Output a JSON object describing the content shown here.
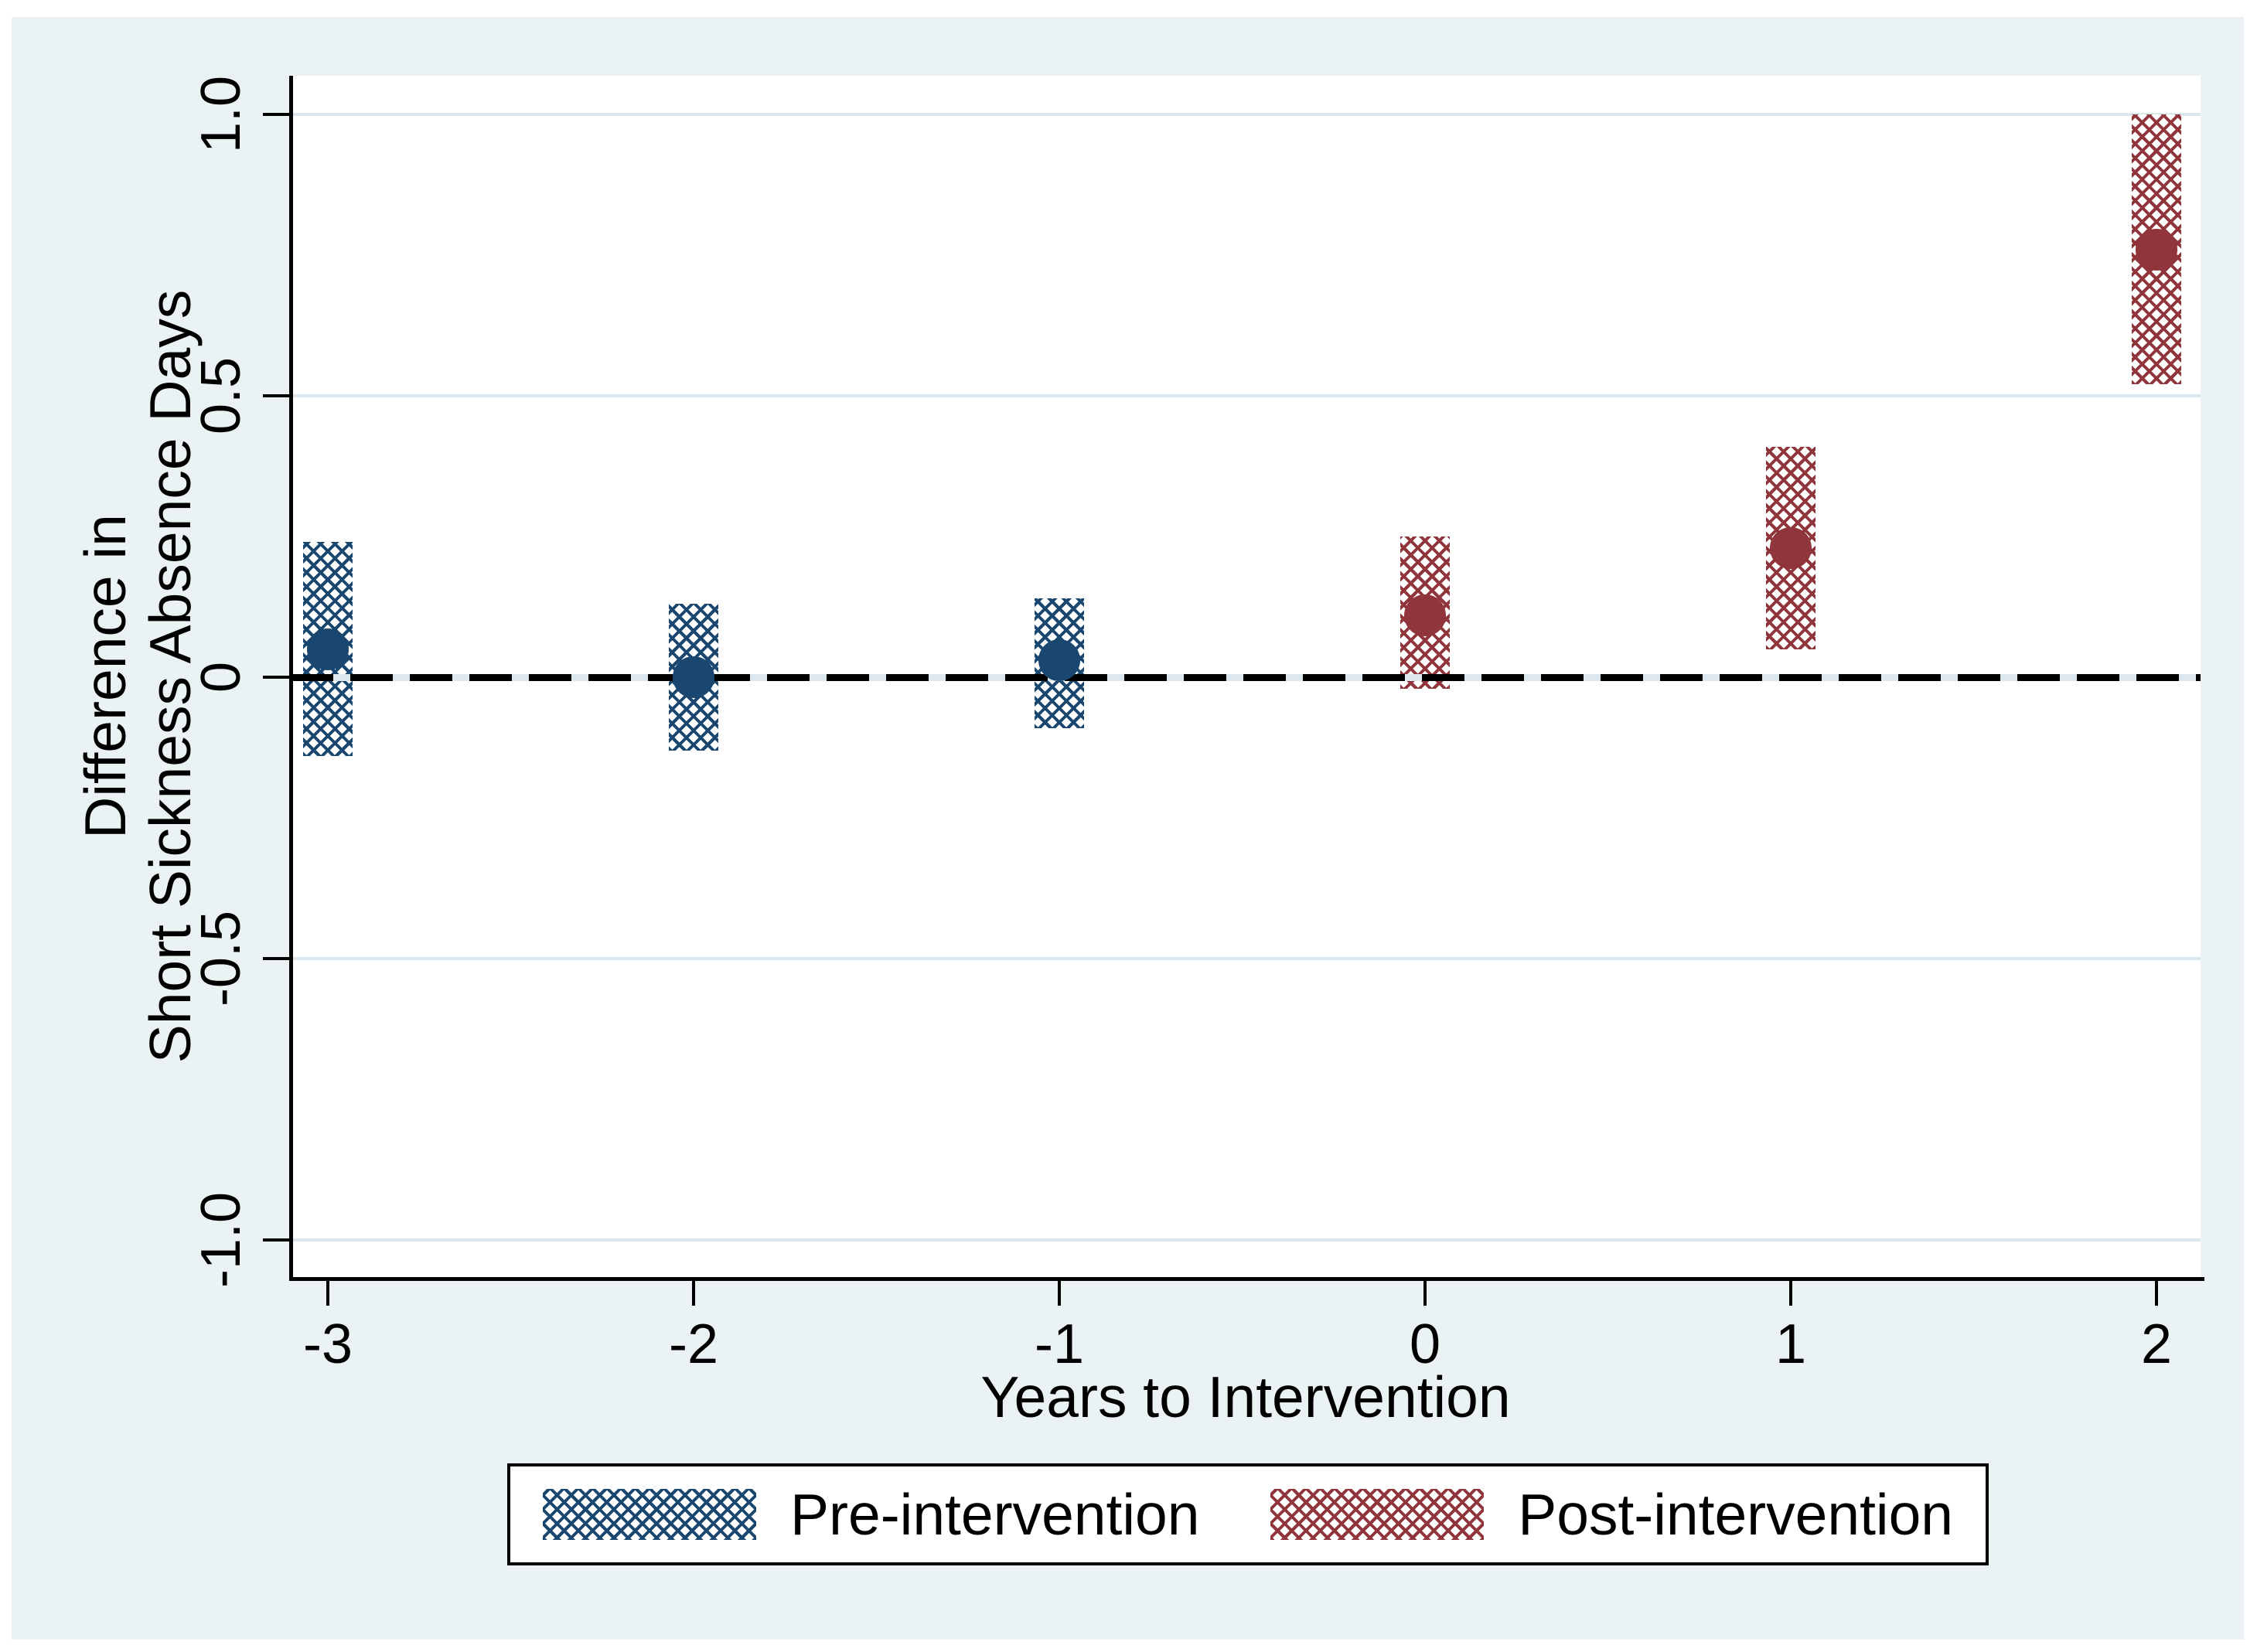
{
  "chart_data": {
    "type": "scatter",
    "subtype": "event-study estimates with shaded confidence-interval bars",
    "title": "",
    "xlabel": "Years to Intervention",
    "ylabel_line1": "Difference in",
    "ylabel_line2": "Short Sickness Absence Days",
    "xlim": [
      -3.1,
      2.15
    ],
    "ylim": [
      -1.07,
      1.07
    ],
    "grid": true,
    "legend_position": "bottom-center",
    "x_ticks": [
      {
        "value": -3,
        "label": "-3"
      },
      {
        "value": -2,
        "label": "-2"
      },
      {
        "value": -1,
        "label": "-1"
      },
      {
        "value": 0,
        "label": "0"
      },
      {
        "value": 1,
        "label": "1"
      },
      {
        "value": 2,
        "label": "2"
      }
    ],
    "y_ticks": [
      {
        "value": 1.0,
        "label": "1.0"
      },
      {
        "value": 0.5,
        "label": "0.5"
      },
      {
        "value": 0,
        "label": "0"
      },
      {
        "value": -0.5,
        "label": "-0.5"
      },
      {
        "value": -1.0,
        "label": "-1.0"
      }
    ],
    "zero_line": {
      "y": 0,
      "style": "dashed",
      "color": "#000000"
    },
    "series": [
      {
        "name": "Pre-intervention",
        "color": "#1a476f",
        "marker": "circle",
        "ci_style": "crosshatch-bar",
        "points": [
          {
            "x": -3,
            "estimate": 0.05,
            "ci_low": -0.14,
            "ci_high": 0.24
          },
          {
            "x": -2,
            "estimate": 0.0,
            "ci_low": -0.13,
            "ci_high": 0.13
          },
          {
            "x": -1,
            "estimate": 0.03,
            "ci_low": -0.09,
            "ci_high": 0.14
          }
        ]
      },
      {
        "name": "Post-intervention",
        "color": "#90353b",
        "marker": "circle",
        "ci_style": "crosshatch-bar",
        "points": [
          {
            "x": 0,
            "estimate": 0.11,
            "ci_low": -0.02,
            "ci_high": 0.25
          },
          {
            "x": 1,
            "estimate": 0.23,
            "ci_low": 0.05,
            "ci_high": 0.41
          },
          {
            "x": 2,
            "estimate": 0.76,
            "ci_low": 0.52,
            "ci_high": 1.0
          }
        ]
      }
    ],
    "colors": {
      "background": "#eaf2f3",
      "plot_background": "#ffffff",
      "gridline": "#dce8ee",
      "axis": "#000000",
      "text": "#000000"
    }
  }
}
